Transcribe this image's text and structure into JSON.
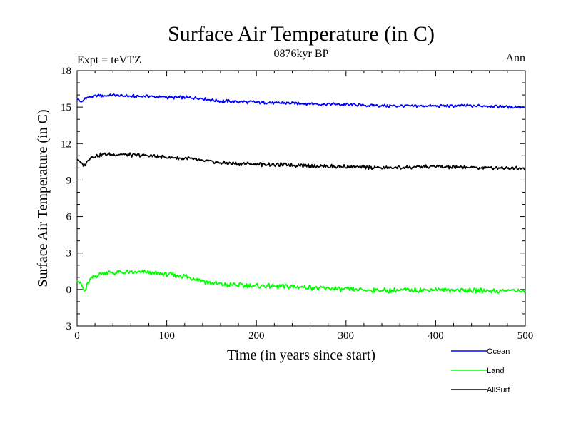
{
  "chart_data": {
    "type": "line",
    "title": "Surface Air Temperature (in C)",
    "subtitle": "0876kyr BP",
    "left_annotation": "Expt = teVTZ",
    "right_annotation": "Ann",
    "xlabel": "Time (in years since start)",
    "ylabel": "Surface Air Temperature (in C)",
    "xlim": [
      0,
      500
    ],
    "ylim": [
      -3,
      18
    ],
    "xticks": [
      0,
      100,
      200,
      300,
      400,
      500
    ],
    "yticks": [
      -3,
      0,
      3,
      6,
      9,
      12,
      15,
      18
    ],
    "xtick_labels": [
      "0",
      "100",
      "200",
      "300",
      "400",
      "500"
    ],
    "ytick_labels": [
      "-3",
      "0",
      "3",
      "6",
      "9",
      "12",
      "15",
      "18"
    ],
    "legend_position": "bottom-right-outside",
    "series": [
      {
        "name": "Ocean",
        "color": "#0000ff",
        "x": [
          0,
          5,
          10,
          20,
          40,
          60,
          80,
          100,
          120,
          140,
          160,
          200,
          250,
          300,
          350,
          400,
          450,
          500
        ],
        "values": [
          15.7,
          15.4,
          15.8,
          15.9,
          16.0,
          15.9,
          15.9,
          15.8,
          15.8,
          15.7,
          15.5,
          15.4,
          15.3,
          15.2,
          15.1,
          15.1,
          15.1,
          15.0
        ]
      },
      {
        "name": "Land",
        "color": "#00ff00",
        "x": [
          0,
          5,
          8,
          15,
          30,
          50,
          80,
          100,
          120,
          140,
          160,
          200,
          250,
          300,
          350,
          400,
          450,
          500
        ],
        "values": [
          0.9,
          0.3,
          -0.2,
          0.9,
          1.4,
          1.4,
          1.4,
          1.2,
          1.1,
          0.7,
          0.4,
          0.3,
          0.2,
          0.0,
          -0.1,
          0.0,
          -0.1,
          -0.1
        ]
      },
      {
        "name": "AllSurf",
        "color": "#000000",
        "x": [
          0,
          5,
          8,
          15,
          30,
          50,
          80,
          100,
          120,
          140,
          160,
          200,
          250,
          300,
          350,
          400,
          450,
          500
        ],
        "values": [
          10.8,
          10.3,
          10.2,
          10.9,
          11.1,
          11.1,
          11.0,
          10.9,
          10.8,
          10.6,
          10.4,
          10.3,
          10.2,
          10.1,
          10.0,
          10.1,
          10.0,
          10.0
        ]
      }
    ]
  }
}
